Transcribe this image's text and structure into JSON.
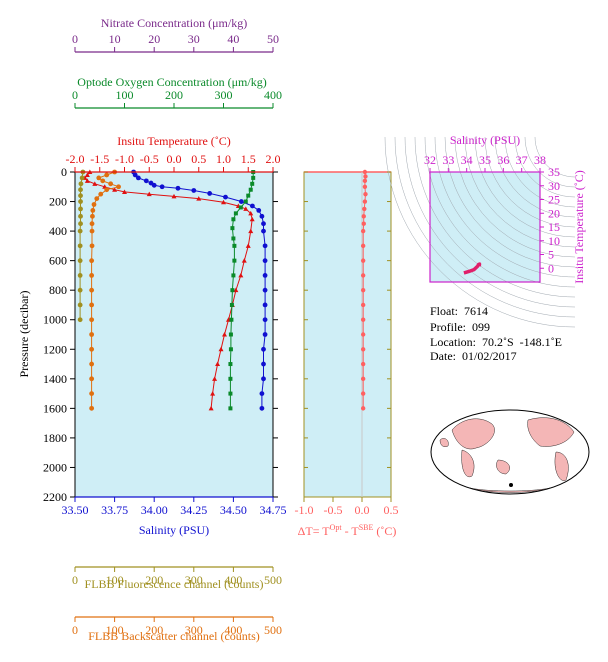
{
  "colors": {
    "nitrate": "#7a2a8a",
    "oxygen": "#0a8a2a",
    "temperature": "#e01010",
    "salinity": "#1010d0",
    "delta_t": "#ff6060",
    "fluorescence": "#a09020",
    "backscatter": "#e07010",
    "ts_axis": "#cc22cc",
    "ts_curve": "#e0206a",
    "plot_bg": "#cfeef6",
    "land": "#f4b6b6"
  },
  "chart_data": [
    {
      "type": "scatter",
      "id": "main_profile",
      "ylabel": "Pressure (decibar)",
      "ylim": [
        2200,
        0
      ],
      "yticks": [
        0,
        200,
        400,
        600,
        800,
        1000,
        1200,
        1400,
        1600,
        1800,
        2000,
        2200
      ],
      "axes": {
        "nitrate": {
          "label": "Nitrate Concentration (μm/kg)",
          "lim": [
            0,
            50
          ],
          "ticks": [
            0,
            10,
            20,
            30,
            40,
            50
          ]
        },
        "oxygen": {
          "label": "Optode Oxygen Concentration (μm/kg)",
          "lim": [
            0,
            400
          ],
          "ticks": [
            0,
            100,
            200,
            300,
            400
          ]
        },
        "temperature": {
          "label": "Insitu Temperature (˚C)",
          "lim": [
            -2.0,
            2.0
          ],
          "ticks": [
            "-2.0",
            "-1.5",
            "-1.0",
            "-0.5",
            "0.0",
            "0.5",
            "1.0",
            "1.5",
            "2.0"
          ]
        },
        "salinity": {
          "label": "Salinity (PSU)",
          "lim": [
            33.5,
            34.75
          ],
          "ticks": [
            "33.50",
            "33.75",
            "34.00",
            "34.25",
            "34.50",
            "34.75"
          ]
        },
        "fluorescence": {
          "label": "FLBB Fluorescence channel (counts)",
          "lim": [
            0,
            500
          ],
          "ticks": [
            0,
            100,
            200,
            300,
            400,
            500
          ]
        },
        "backscatter": {
          "label": "FLBB Backscatter channel (counts)",
          "lim": [
            0,
            500
          ],
          "ticks": [
            0,
            100,
            200,
            300,
            400,
            500
          ]
        }
      },
      "series": [
        {
          "name": "Insitu Temperature",
          "axis": "temperature",
          "marker": "triangle",
          "points": [
            [
              -1.7,
              0
            ],
            [
              -1.75,
              20
            ],
            [
              -1.8,
              40
            ],
            [
              -1.75,
              60
            ],
            [
              -1.6,
              80
            ],
            [
              -1.4,
              100
            ],
            [
              -1.2,
              120
            ],
            [
              -1.0,
              135
            ],
            [
              -0.5,
              150
            ],
            [
              0.0,
              165
            ],
            [
              0.5,
              180
            ],
            [
              1.0,
              205
            ],
            [
              1.3,
              230
            ],
            [
              1.45,
              250
            ],
            [
              1.55,
              280
            ],
            [
              1.58,
              320
            ],
            [
              1.55,
              400
            ],
            [
              1.5,
              500
            ],
            [
              1.42,
              600
            ],
            [
              1.35,
              700
            ],
            [
              1.25,
              800
            ],
            [
              1.18,
              900
            ],
            [
              1.1,
              1000
            ],
            [
              1.02,
              1100
            ],
            [
              0.95,
              1200
            ],
            [
              0.88,
              1300
            ],
            [
              0.82,
              1400
            ],
            [
              0.78,
              1500
            ],
            [
              0.75,
              1600
            ]
          ]
        },
        {
          "name": "Salinity",
          "axis": "salinity",
          "marker": "circle",
          "points": [
            [
              33.87,
              0
            ],
            [
              33.88,
              20
            ],
            [
              33.9,
              40
            ],
            [
              33.95,
              60
            ],
            [
              33.98,
              75
            ],
            [
              34.0,
              90
            ],
            [
              34.05,
              100
            ],
            [
              34.15,
              110
            ],
            [
              34.25,
              125
            ],
            [
              34.35,
              145
            ],
            [
              34.45,
              170
            ],
            [
              34.55,
              200
            ],
            [
              34.62,
              230
            ],
            [
              34.66,
              260
            ],
            [
              34.68,
              300
            ],
            [
              34.69,
              350
            ],
            [
              34.69,
              400
            ],
            [
              34.7,
              500
            ],
            [
              34.7,
              600
            ],
            [
              34.7,
              700
            ],
            [
              34.7,
              800
            ],
            [
              34.7,
              900
            ],
            [
              34.7,
              1000
            ],
            [
              34.7,
              1100
            ],
            [
              34.69,
              1200
            ],
            [
              34.69,
              1300
            ],
            [
              34.69,
              1400
            ],
            [
              34.68,
              1500
            ],
            [
              34.68,
              1600
            ]
          ]
        },
        {
          "name": "Optode Oxygen",
          "axis": "oxygen",
          "marker": "square",
          "points": [
            [
              360,
              0
            ],
            [
              360,
              40
            ],
            [
              358,
              80
            ],
            [
              355,
              120
            ],
            [
              350,
              160
            ],
            [
              345,
              200
            ],
            [
              335,
              240
            ],
            [
              325,
              280
            ],
            [
              320,
              320
            ],
            [
              318,
              380
            ],
            [
              320,
              450
            ],
            [
              322,
              500
            ],
            [
              322,
              600
            ],
            [
              320,
              700
            ],
            [
              318,
              800
            ],
            [
              317,
              900
            ],
            [
              316,
              1000
            ],
            [
              315,
              1100
            ],
            [
              315,
              1200
            ],
            [
              314,
              1300
            ],
            [
              314,
              1400
            ],
            [
              314,
              1500
            ],
            [
              314,
              1600
            ]
          ]
        },
        {
          "name": "FLBB Fluorescence",
          "axis": "fluorescence",
          "marker": "circle",
          "points": [
            [
              20,
              0
            ],
            [
              18,
              40
            ],
            [
              15,
              80
            ],
            [
              14,
              120
            ],
            [
              14,
              160
            ],
            [
              14,
              200
            ],
            [
              14,
              250
            ],
            [
              14,
              300
            ],
            [
              14,
              350
            ],
            [
              13,
              400
            ],
            [
              13,
              500
            ],
            [
              13,
              600
            ],
            [
              13,
              700
            ],
            [
              13,
              800
            ],
            [
              13,
              900
            ],
            [
              13,
              1000
            ]
          ]
        },
        {
          "name": "FLBB Backscatter",
          "axis": "backscatter",
          "marker": "circle",
          "points": [
            [
              100,
              0
            ],
            [
              80,
              20
            ],
            [
              60,
              40
            ],
            [
              70,
              60
            ],
            [
              90,
              80
            ],
            [
              110,
              100
            ],
            [
              80,
              120
            ],
            [
              65,
              150
            ],
            [
              55,
              180
            ],
            [
              48,
              220
            ],
            [
              45,
              260
            ],
            [
              44,
              300
            ],
            [
              43,
              350
            ],
            [
              43,
              400
            ],
            [
              43,
              500
            ],
            [
              42,
              600
            ],
            [
              42,
              700
            ],
            [
              42,
              800
            ],
            [
              42,
              900
            ],
            [
              42,
              1000
            ],
            [
              42,
              1100
            ],
            [
              42,
              1200
            ],
            [
              42,
              1300
            ],
            [
              42,
              1400
            ],
            [
              42,
              1500
            ],
            [
              42,
              1600
            ]
          ]
        }
      ]
    },
    {
      "type": "scatter",
      "id": "delta_t",
      "xlabel": "ΔT= T",
      "xlabel_sup1": "Opt",
      "xlabel_mid": " - T",
      "xlabel_sup2": "SBE",
      "xlabel_end": " (˚C)",
      "xlim": [
        -1.0,
        0.5
      ],
      "xticks": [
        "-1.0",
        "-0.5",
        "0.0",
        "0.5"
      ],
      "ylim": [
        2200,
        0
      ],
      "series": [
        {
          "name": "Delta T",
          "marker": "circle",
          "points": [
            [
              0.05,
              0
            ],
            [
              0.06,
              30
            ],
            [
              0.05,
              60
            ],
            [
              0.05,
              100
            ],
            [
              0.06,
              150
            ],
            [
              0.05,
              200
            ],
            [
              0.04,
              250
            ],
            [
              0.03,
              300
            ],
            [
              0.03,
              350
            ],
            [
              0.02,
              400
            ],
            [
              0.02,
              500
            ],
            [
              0.02,
              600
            ],
            [
              0.02,
              700
            ],
            [
              0.02,
              800
            ],
            [
              0.02,
              900
            ],
            [
              0.02,
              1000
            ],
            [
              0.02,
              1100
            ],
            [
              0.02,
              1200
            ],
            [
              0.02,
              1300
            ],
            [
              0.02,
              1400
            ],
            [
              0.02,
              1500
            ],
            [
              0.02,
              1600
            ]
          ]
        }
      ]
    },
    {
      "type": "scatter",
      "id": "ts_diagram",
      "xlabel": "Salinity (PSU)",
      "ylabel": "Insitu Temperature (˚C)",
      "xlim": [
        32,
        38
      ],
      "ylim": [
        -5,
        35
      ],
      "xticks": [
        32,
        33,
        34,
        35,
        36,
        37,
        38
      ],
      "yticks": [
        0,
        5,
        10,
        15,
        20,
        25,
        30,
        35
      ],
      "series": [
        {
          "name": "T-S",
          "points": [
            [
              33.85,
              -1.7
            ],
            [
              34.1,
              -1.2
            ],
            [
              34.4,
              -0.5
            ],
            [
              34.6,
              0.8
            ],
            [
              34.65,
              1.4
            ],
            [
              34.7,
              1.5
            ],
            [
              34.69,
              1.0
            ],
            [
              34.68,
              0.8
            ]
          ]
        }
      ]
    }
  ],
  "info": {
    "float": "Float:  7614",
    "profile": "Profile:  099",
    "location": "Location:  70.2˚S  -148.1˚E",
    "date": "Date:  01/02/2017"
  }
}
